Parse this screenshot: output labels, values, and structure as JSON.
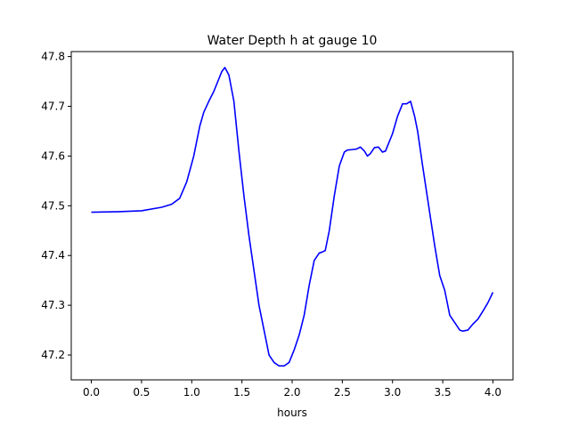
{
  "chart_data": {
    "type": "line",
    "title": "Water Depth h at gauge 10",
    "xlabel": "hours",
    "ylabel": "",
    "xlim": [
      -0.2,
      4.2
    ],
    "ylim": [
      47.15,
      47.81
    ],
    "xticks": [
      0.0,
      0.5,
      1.0,
      1.5,
      2.0,
      2.5,
      3.0,
      3.5,
      4.0
    ],
    "xtick_labels": [
      "0.0",
      "0.5",
      "1.0",
      "1.5",
      "2.0",
      "2.5",
      "3.0",
      "3.5",
      "4.0"
    ],
    "yticks": [
      47.2,
      47.3,
      47.4,
      47.5,
      47.6,
      47.7,
      47.8
    ],
    "ytick_labels": [
      "47.2",
      "47.3",
      "47.4",
      "47.5",
      "47.6",
      "47.7",
      "47.8"
    ],
    "grid": false,
    "series": [
      {
        "color": "#0000ff",
        "x": [
          0.0,
          0.25,
          0.5,
          0.7,
          0.8,
          0.88,
          0.95,
          1.02,
          1.08,
          1.12,
          1.17,
          1.22,
          1.27,
          1.3,
          1.33,
          1.37,
          1.42,
          1.47,
          1.52,
          1.57,
          1.62,
          1.67,
          1.72,
          1.77,
          1.82,
          1.87,
          1.92,
          1.97,
          2.02,
          2.07,
          2.12,
          2.17,
          2.22,
          2.27,
          2.3,
          2.33,
          2.37,
          2.42,
          2.47,
          2.52,
          2.55,
          2.6,
          2.64,
          2.68,
          2.72,
          2.75,
          2.78,
          2.82,
          2.86,
          2.9,
          2.93,
          2.96,
          3.0,
          3.05,
          3.1,
          3.14,
          3.18,
          3.22,
          3.25,
          3.3,
          3.36,
          3.42,
          3.47,
          3.52,
          3.57,
          3.62,
          3.67,
          3.7,
          3.75,
          3.8,
          3.85,
          3.9,
          3.95,
          4.0
        ],
        "y": [
          47.487,
          47.488,
          47.49,
          47.497,
          47.503,
          47.515,
          47.548,
          47.6,
          47.66,
          47.688,
          47.71,
          47.73,
          47.755,
          47.77,
          47.778,
          47.763,
          47.71,
          47.61,
          47.52,
          47.44,
          47.37,
          47.3,
          47.25,
          47.2,
          47.185,
          47.178,
          47.178,
          47.185,
          47.21,
          47.24,
          47.28,
          47.34,
          47.39,
          47.405,
          47.407,
          47.41,
          47.45,
          47.52,
          47.58,
          47.608,
          47.612,
          47.613,
          47.614,
          47.618,
          47.61,
          47.6,
          47.605,
          47.617,
          47.618,
          47.608,
          47.61,
          47.625,
          47.645,
          47.68,
          47.705,
          47.705,
          47.71,
          47.68,
          47.65,
          47.58,
          47.5,
          47.42,
          47.36,
          47.33,
          47.28,
          47.265,
          47.25,
          47.248,
          47.25,
          47.262,
          47.272,
          47.288,
          47.305,
          47.326
        ]
      }
    ]
  }
}
